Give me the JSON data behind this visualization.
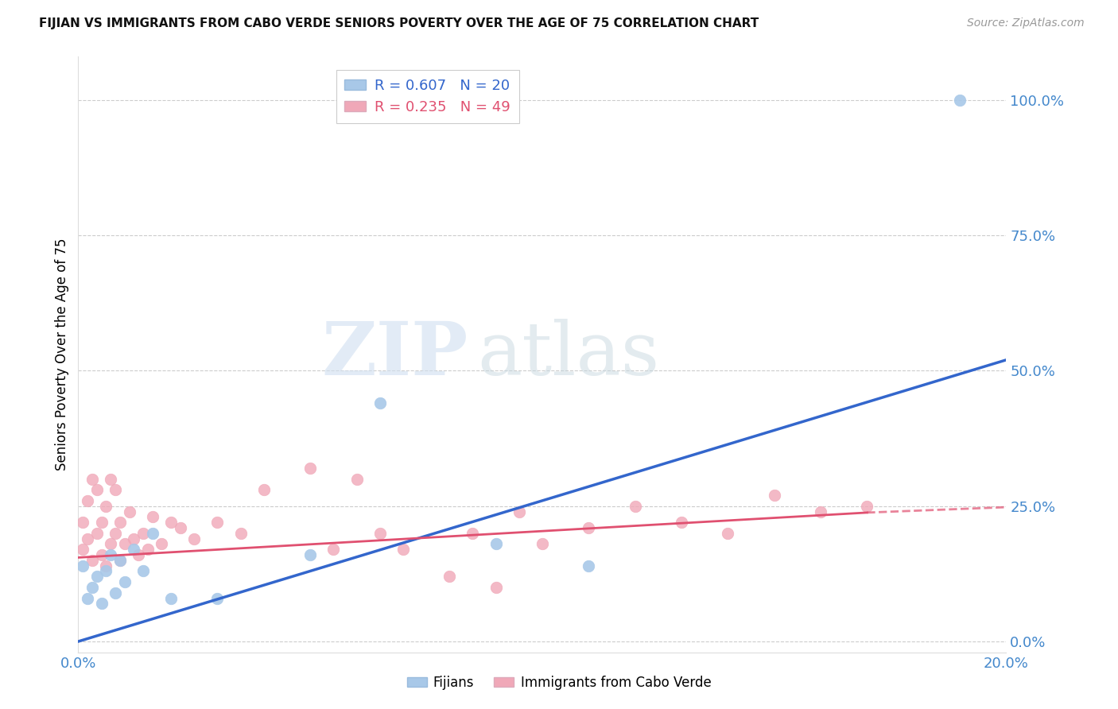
{
  "title": "FIJIAN VS IMMIGRANTS FROM CABO VERDE SENIORS POVERTY OVER THE AGE OF 75 CORRELATION CHART",
  "source": "Source: ZipAtlas.com",
  "ylabel": "Seniors Poverty Over the Age of 75",
  "xlim": [
    0.0,
    0.2
  ],
  "ylim": [
    -0.02,
    1.08
  ],
  "yticks": [
    0.0,
    0.25,
    0.5,
    0.75,
    1.0
  ],
  "ytick_labels": [
    "0.0%",
    "25.0%",
    "50.0%",
    "75.0%",
    "100.0%"
  ],
  "xticks": [
    0.0,
    0.05,
    0.1,
    0.15,
    0.2
  ],
  "xtick_labels": [
    "0.0%",
    "",
    "",
    "",
    "20.0%"
  ],
  "fijian_color": "#a8c8e8",
  "cabo_verde_color": "#f0a8b8",
  "fijian_line_color": "#3366cc",
  "cabo_verde_line_color": "#e05070",
  "tick_color": "#4488cc",
  "R_fijian": 0.607,
  "N_fijian": 20,
  "R_cabo_verde": 0.235,
  "N_cabo_verde": 49,
  "legend_label_fijian": "Fijians",
  "legend_label_cabo_verde": "Immigrants from Cabo Verde",
  "watermark_zip": "ZIP",
  "watermark_atlas": "atlas",
  "fijian_x": [
    0.001,
    0.002,
    0.003,
    0.004,
    0.005,
    0.006,
    0.007,
    0.008,
    0.009,
    0.01,
    0.012,
    0.014,
    0.016,
    0.02,
    0.03,
    0.05,
    0.065,
    0.09,
    0.11,
    0.19
  ],
  "fijian_y": [
    0.14,
    0.08,
    0.1,
    0.12,
    0.07,
    0.13,
    0.16,
    0.09,
    0.15,
    0.11,
    0.17,
    0.13,
    0.2,
    0.08,
    0.08,
    0.16,
    0.44,
    0.18,
    0.14,
    1.0
  ],
  "cabo_verde_x": [
    0.001,
    0.001,
    0.002,
    0.002,
    0.003,
    0.003,
    0.004,
    0.004,
    0.005,
    0.005,
    0.006,
    0.006,
    0.007,
    0.007,
    0.008,
    0.008,
    0.009,
    0.009,
    0.01,
    0.011,
    0.012,
    0.013,
    0.014,
    0.015,
    0.016,
    0.018,
    0.02,
    0.022,
    0.025,
    0.03,
    0.035,
    0.04,
    0.05,
    0.055,
    0.06,
    0.065,
    0.07,
    0.08,
    0.085,
    0.09,
    0.095,
    0.1,
    0.11,
    0.12,
    0.13,
    0.14,
    0.15,
    0.16,
    0.17
  ],
  "cabo_verde_y": [
    0.17,
    0.22,
    0.19,
    0.26,
    0.15,
    0.3,
    0.2,
    0.28,
    0.16,
    0.22,
    0.14,
    0.25,
    0.3,
    0.18,
    0.28,
    0.2,
    0.22,
    0.15,
    0.18,
    0.24,
    0.19,
    0.16,
    0.2,
    0.17,
    0.23,
    0.18,
    0.22,
    0.21,
    0.19,
    0.22,
    0.2,
    0.28,
    0.32,
    0.17,
    0.3,
    0.2,
    0.17,
    0.12,
    0.2,
    0.1,
    0.24,
    0.18,
    0.21,
    0.25,
    0.22,
    0.2,
    0.27,
    0.24,
    0.25
  ],
  "fijian_line_x": [
    0.0,
    0.2
  ],
  "fijian_line_y": [
    0.0,
    0.52
  ],
  "cabo_line_x0": 0.0,
  "cabo_line_x1": 0.17,
  "cabo_line_x2": 0.2,
  "cabo_line_y0": 0.155,
  "cabo_line_y1": 0.238,
  "cabo_line_y2": 0.248,
  "background_color": "#ffffff",
  "grid_color": "#cccccc"
}
